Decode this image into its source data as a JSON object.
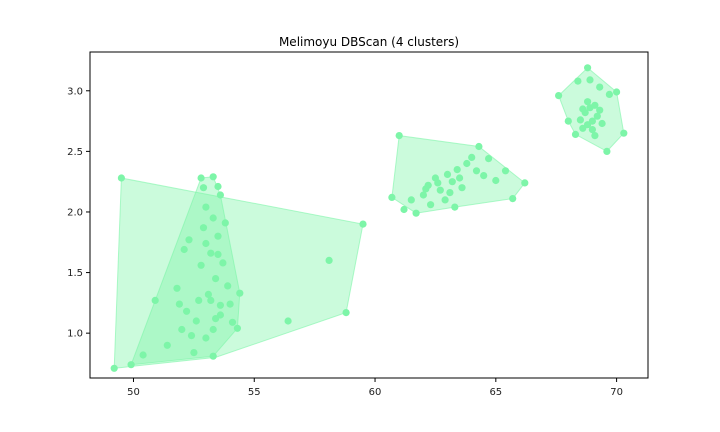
{
  "chart_data": {
    "type": "scatter",
    "title": "Melimoyu DBScan (4 clusters)",
    "xlabel": "",
    "ylabel": "",
    "xlim": [
      48.2,
      71.3
    ],
    "ylim": [
      0.63,
      3.32
    ],
    "xticks": [
      50,
      55,
      60,
      65,
      70
    ],
    "yticks": [
      1.0,
      1.5,
      2.0,
      2.5,
      3.0
    ],
    "xtick_labels": [
      "50",
      "55",
      "60",
      "65",
      "70"
    ],
    "ytick_labels": [
      "1.0",
      "1.5",
      "2.0",
      "2.5",
      "3.0"
    ],
    "grid": false,
    "legend": "none",
    "colors": {
      "point": "#7df5a8",
      "hull_fill": "#7df5a8",
      "axis": "#000000",
      "background": "#ffffff"
    },
    "clusters": [
      {
        "id": 1,
        "hull": [
          [
            49.2,
            0.71
          ],
          [
            49.5,
            2.28
          ],
          [
            59.5,
            1.9
          ],
          [
            58.8,
            1.17
          ],
          [
            53.4,
            0.8
          ]
        ],
        "points": [
          [
            49.2,
            0.71
          ],
          [
            49.5,
            2.28
          ],
          [
            59.5,
            1.9
          ],
          [
            58.8,
            1.17
          ],
          [
            58.1,
            1.6
          ],
          [
            56.4,
            1.1
          ],
          [
            50.4,
            0.82
          ],
          [
            50.9,
            1.27
          ],
          [
            51.4,
            0.9
          ],
          [
            51.8,
            1.37
          ],
          [
            51.9,
            1.24
          ],
          [
            52.0,
            1.03
          ],
          [
            52.1,
            1.69
          ],
          [
            52.2,
            1.18
          ],
          [
            52.3,
            1.77
          ]
        ]
      },
      {
        "id": 2,
        "hull": [
          [
            49.9,
            0.74
          ],
          [
            52.8,
            2.28
          ],
          [
            53.3,
            2.29
          ],
          [
            53.6,
            2.14
          ],
          [
            54.4,
            1.33
          ],
          [
            54.3,
            1.04
          ],
          [
            53.3,
            0.81
          ]
        ],
        "points": [
          [
            49.9,
            0.74
          ],
          [
            52.8,
            2.28
          ],
          [
            53.3,
            2.29
          ],
          [
            53.6,
            2.14
          ],
          [
            54.4,
            1.33
          ],
          [
            54.3,
            1.04
          ],
          [
            53.3,
            0.81
          ],
          [
            52.5,
            0.84
          ],
          [
            52.6,
            1.1
          ],
          [
            52.7,
            1.27
          ],
          [
            52.8,
            1.56
          ],
          [
            52.9,
            1.87
          ],
          [
            53.0,
            2.04
          ],
          [
            53.1,
            1.32
          ],
          [
            53.2,
            1.66
          ],
          [
            53.3,
            1.95
          ],
          [
            53.4,
            1.45
          ],
          [
            53.5,
            1.8
          ],
          [
            53.6,
            1.23
          ],
          [
            53.7,
            1.58
          ],
          [
            53.8,
            1.91
          ],
          [
            53.9,
            1.39
          ],
          [
            54.0,
            1.24
          ],
          [
            54.1,
            1.09
          ],
          [
            52.9,
            2.2
          ],
          [
            53.5,
            2.21
          ],
          [
            53.0,
            0.96
          ],
          [
            53.3,
            1.03
          ],
          [
            53.6,
            1.15
          ],
          [
            52.4,
            0.98
          ],
          [
            53.0,
            1.74
          ],
          [
            53.4,
            1.12
          ],
          [
            53.2,
            1.27
          ],
          [
            53.5,
            1.65
          ]
        ]
      },
      {
        "id": 3,
        "hull": [
          [
            60.7,
            2.12
          ],
          [
            61.0,
            2.63
          ],
          [
            64.3,
            2.54
          ],
          [
            66.2,
            2.24
          ],
          [
            65.7,
            2.11
          ],
          [
            63.3,
            2.04
          ],
          [
            61.7,
            1.99
          ]
        ],
        "points": [
          [
            60.7,
            2.12
          ],
          [
            61.0,
            2.63
          ],
          [
            64.3,
            2.54
          ],
          [
            66.2,
            2.24
          ],
          [
            65.7,
            2.11
          ],
          [
            63.3,
            2.04
          ],
          [
            61.7,
            1.99
          ],
          [
            61.2,
            2.02
          ],
          [
            61.5,
            2.1
          ],
          [
            62.0,
            2.14
          ],
          [
            62.2,
            2.22
          ],
          [
            62.5,
            2.28
          ],
          [
            62.7,
            2.18
          ],
          [
            63.0,
            2.31
          ],
          [
            63.2,
            2.25
          ],
          [
            63.4,
            2.35
          ],
          [
            63.6,
            2.2
          ],
          [
            63.8,
            2.4
          ],
          [
            64.0,
            2.45
          ],
          [
            64.2,
            2.34
          ],
          [
            64.5,
            2.3
          ],
          [
            64.7,
            2.44
          ],
          [
            65.0,
            2.26
          ],
          [
            65.4,
            2.34
          ],
          [
            62.3,
            2.06
          ],
          [
            62.9,
            2.1
          ],
          [
            63.1,
            2.16
          ],
          [
            62.6,
            2.24
          ],
          [
            62.1,
            2.19
          ],
          [
            63.5,
            2.28
          ]
        ]
      },
      {
        "id": 4,
        "hull": [
          [
            67.6,
            2.96
          ],
          [
            68.8,
            3.19
          ],
          [
            70.0,
            2.99
          ],
          [
            70.3,
            2.65
          ],
          [
            69.6,
            2.5
          ],
          [
            68.3,
            2.64
          ],
          [
            68.0,
            2.75
          ]
        ],
        "points": [
          [
            67.6,
            2.96
          ],
          [
            68.8,
            3.19
          ],
          [
            70.0,
            2.99
          ],
          [
            70.3,
            2.65
          ],
          [
            69.6,
            2.5
          ],
          [
            68.3,
            2.64
          ],
          [
            68.0,
            2.75
          ],
          [
            68.4,
            3.08
          ],
          [
            68.9,
            3.09
          ],
          [
            69.3,
            3.03
          ],
          [
            69.7,
            2.97
          ],
          [
            68.6,
            2.69
          ],
          [
            68.8,
            2.72
          ],
          [
            69.0,
            2.75
          ],
          [
            69.2,
            2.79
          ],
          [
            68.7,
            2.82
          ],
          [
            68.9,
            2.86
          ],
          [
            69.1,
            2.88
          ],
          [
            69.3,
            2.84
          ],
          [
            68.5,
            2.76
          ],
          [
            69.0,
            2.68
          ],
          [
            69.4,
            2.73
          ],
          [
            68.8,
            2.91
          ],
          [
            69.1,
            2.63
          ],
          [
            68.6,
            2.85
          ]
        ]
      }
    ]
  }
}
